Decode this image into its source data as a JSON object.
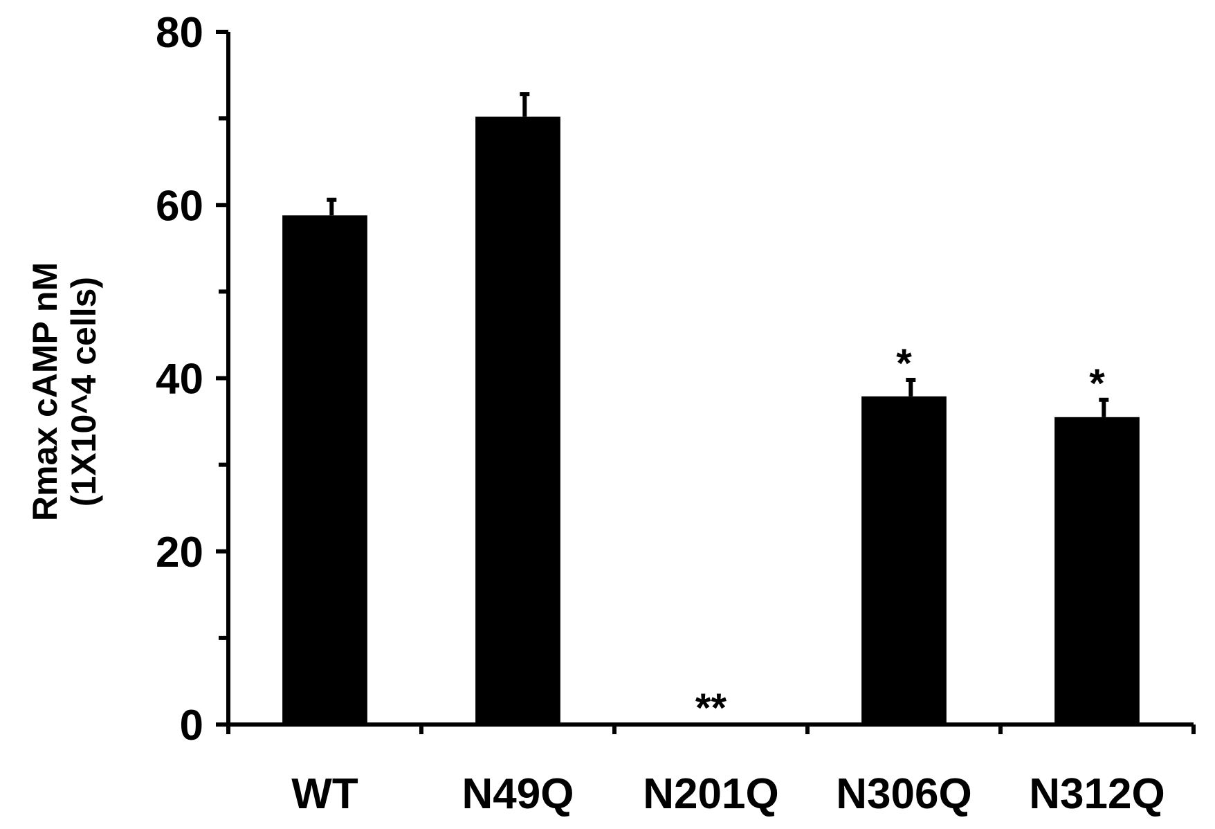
{
  "chart_data": {
    "type": "bar",
    "categories": [
      "WT",
      "N49Q",
      "N201Q",
      "N306Q",
      "N312Q"
    ],
    "values": [
      58.8,
      70.2,
      0,
      37.9,
      35.5
    ],
    "errors": [
      1.8,
      2.6,
      0,
      1.9,
      2.0
    ],
    "significance": [
      "",
      "",
      "**",
      "*",
      "*"
    ],
    "ylabel_line1": "Rmax cAMP nM",
    "ylabel_line2": "(1X10^4 cells)",
    "xlabel": "",
    "title": "",
    "ylim": [
      0,
      80
    ],
    "yticks": [
      0,
      20,
      40,
      60,
      80
    ],
    "yminor_ticks": [
      10,
      30,
      50,
      70
    ],
    "bar_color": "#000000",
    "grid": false,
    "legend": "none"
  }
}
